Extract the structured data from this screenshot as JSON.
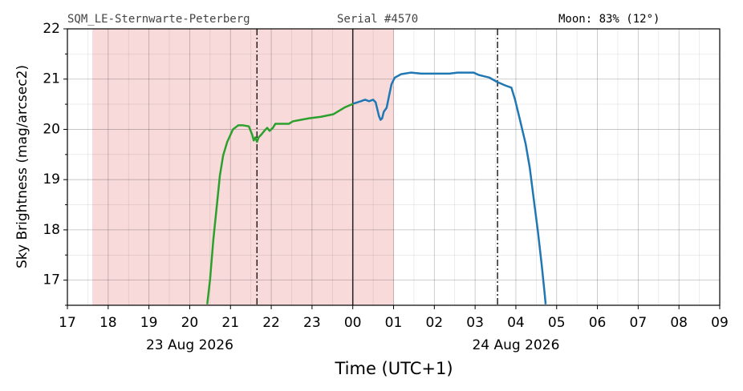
{
  "chart_data": {
    "type": "line",
    "header": {
      "site": "SQM_LE-Sternwarte-Peterberg",
      "serial": "Serial #4570",
      "moon": "Moon: 83% (12°)"
    },
    "y_label": "Sky Brightness (mag/arcsec2)",
    "x_label": "Time (UTC+1)",
    "xlim": [
      17,
      33
    ],
    "ylim": [
      16.5,
      22
    ],
    "xticks": [
      17,
      18,
      19,
      20,
      21,
      22,
      23,
      {
        "value": 24,
        "label": "00"
      },
      {
        "value": 25,
        "label": "01"
      },
      {
        "value": 26,
        "label": "02"
      },
      {
        "value": 27,
        "label": "03"
      },
      {
        "value": 28,
        "label": "04"
      },
      {
        "value": 29,
        "label": "05"
      },
      {
        "value": 30,
        "label": "06"
      },
      {
        "value": 31,
        "label": "07"
      },
      {
        "value": 32,
        "label": "08"
      },
      {
        "value": 33,
        "label": "09"
      }
    ],
    "date_ticks": [
      {
        "value": 20,
        "label": "23 Aug 2026"
      },
      {
        "value": 28,
        "label": "24 Aug 2026"
      }
    ],
    "yticks": [
      17,
      18,
      19,
      20,
      21,
      22
    ],
    "x_minor_ticks": [
      17.5,
      18.5,
      19.5,
      20.5,
      21.5,
      22.5,
      23.5,
      24.5,
      25.5,
      26.5,
      27.5,
      28.5,
      29.5,
      30.5,
      31.5,
      32.5
    ],
    "y_minor_ticks": [
      16.5,
      17.5,
      18.5,
      19.5,
      20.5,
      21.5
    ],
    "grid": true,
    "night_span": [
      17.61,
      25.01
    ],
    "night_color": "#f8dada",
    "dashed_lines": [
      21.65,
      27.55
    ],
    "midnight_line": 24,
    "series": [
      {
        "color": "#2ca02c",
        "x": [
          20.43,
          20.5,
          20.58,
          20.66,
          20.74,
          20.82,
          20.92,
          21.06,
          21.19,
          21.31,
          21.45,
          21.53,
          21.57,
          21.61,
          21.65,
          21.69,
          21.76,
          21.84,
          21.9,
          21.96,
          22.04,
          22.1,
          22.24,
          22.43,
          22.53,
          22.73,
          22.93,
          23.22,
          23.52,
          23.81,
          24.01
        ],
        "values": [
          16.52,
          17.02,
          17.81,
          18.44,
          19.08,
          19.48,
          19.75,
          20.0,
          20.08,
          20.08,
          20.06,
          19.9,
          19.78,
          19.84,
          19.75,
          19.84,
          19.9,
          19.98,
          20.03,
          19.97,
          20.03,
          20.11,
          20.11,
          20.11,
          20.16,
          20.19,
          20.22,
          20.25,
          20.3,
          20.44,
          20.51
        ]
      },
      {
        "color": "#1f77b4",
        "x": [
          24.01,
          24.2,
          24.3,
          24.4,
          24.5,
          24.56,
          24.64,
          24.68,
          24.72,
          24.76,
          24.83,
          24.89,
          24.95,
          25.03,
          25.19,
          25.43,
          25.68,
          25.98,
          26.37,
          26.57,
          26.96,
          27.1,
          27.35,
          27.55,
          27.75,
          27.89,
          27.98,
          28.1,
          28.24,
          28.34,
          28.44,
          28.54,
          28.63,
          28.71,
          28.73
        ],
        "values": [
          20.51,
          20.56,
          20.59,
          20.56,
          20.59,
          20.54,
          20.27,
          20.19,
          20.22,
          20.35,
          20.43,
          20.67,
          20.9,
          21.03,
          21.1,
          21.13,
          21.11,
          21.11,
          21.11,
          21.13,
          21.13,
          21.08,
          21.03,
          20.94,
          20.87,
          20.83,
          20.59,
          20.19,
          19.71,
          19.24,
          18.6,
          17.97,
          17.33,
          16.7,
          16.52
        ]
      }
    ]
  }
}
